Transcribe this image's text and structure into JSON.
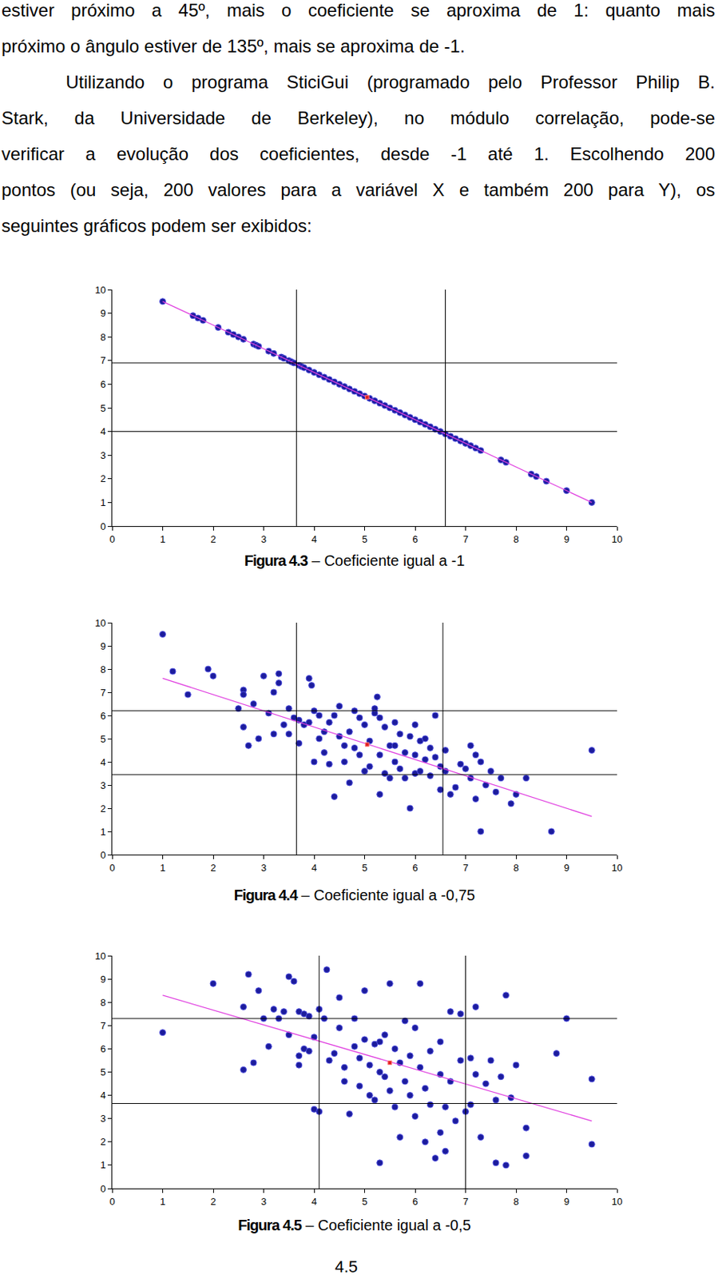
{
  "paragraphs": [
    {
      "indent": false,
      "lines": [
        "estiver próximo a 45º, mais o coeficiente se aproxima de 1: quanto mais",
        "próximo o ângulo estiver de 135º, mais se aproxima de -1."
      ]
    },
    {
      "indent": true,
      "lines": [
        "Utilizando o programa SticiGui (programado pelo Professor Philip B.",
        "Stark, da Universidade de Berkeley), no módulo correlação, pode-se",
        "verificar a evolução dos coeficientes, desde -1 até 1.  Escolhendo 200",
        "pontos (ou seja, 200 valores para a variável X e também 200 para Y), os",
        "seguintes gráficos podem ser exibidos:"
      ]
    }
  ],
  "chart_data": [
    {
      "type": "scatter",
      "caption": {
        "label": "Figura 4.3",
        "text": "– Coeficiente igual a -1"
      },
      "xlim": [
        0,
        10
      ],
      "ylim": [
        0,
        10
      ],
      "xticks": [
        0,
        1,
        2,
        3,
        4,
        5,
        6,
        7,
        8,
        9,
        10
      ],
      "yticks": [
        0,
        1,
        2,
        3,
        4,
        5,
        6,
        7,
        8,
        9,
        10
      ],
      "grid": false,
      "color": "#1c1c9c",
      "points": [
        [
          1.0,
          9.5
        ],
        [
          1.6,
          8.9
        ],
        [
          1.7,
          8.8
        ],
        [
          1.8,
          8.7
        ],
        [
          2.1,
          8.4
        ],
        [
          2.3,
          8.2
        ],
        [
          2.4,
          8.1
        ],
        [
          2.5,
          8.0
        ],
        [
          2.6,
          7.9
        ],
        [
          2.8,
          7.7
        ],
        [
          2.85,
          7.65
        ],
        [
          2.9,
          7.6
        ],
        [
          3.1,
          7.4
        ],
        [
          3.2,
          7.3
        ],
        [
          3.35,
          7.15
        ],
        [
          3.4,
          7.1
        ],
        [
          3.5,
          7.0
        ],
        [
          3.55,
          6.95
        ],
        [
          3.6,
          6.9
        ],
        [
          3.7,
          6.8
        ],
        [
          3.75,
          6.75
        ],
        [
          3.8,
          6.7
        ],
        [
          3.9,
          6.6
        ],
        [
          4.0,
          6.5
        ],
        [
          4.1,
          6.4
        ],
        [
          4.2,
          6.3
        ],
        [
          4.3,
          6.2
        ],
        [
          4.4,
          6.1
        ],
        [
          4.5,
          6.0
        ],
        [
          4.6,
          5.9
        ],
        [
          4.7,
          5.8
        ],
        [
          4.8,
          5.7
        ],
        [
          4.9,
          5.6
        ],
        [
          5.0,
          5.5
        ],
        [
          5.1,
          5.4
        ],
        [
          5.2,
          5.3
        ],
        [
          5.3,
          5.2
        ],
        [
          5.4,
          5.1
        ],
        [
          5.5,
          5.0
        ],
        [
          5.6,
          4.9
        ],
        [
          5.7,
          4.8
        ],
        [
          5.8,
          4.7
        ],
        [
          5.9,
          4.6
        ],
        [
          6.0,
          4.5
        ],
        [
          6.1,
          4.4
        ],
        [
          6.2,
          4.3
        ],
        [
          6.3,
          4.2
        ],
        [
          6.4,
          4.1
        ],
        [
          6.5,
          4.0
        ],
        [
          6.6,
          3.9
        ],
        [
          6.7,
          3.8
        ],
        [
          6.8,
          3.7
        ],
        [
          6.9,
          3.6
        ],
        [
          7.0,
          3.5
        ],
        [
          7.1,
          3.4
        ],
        [
          7.2,
          3.3
        ],
        [
          7.3,
          3.2
        ],
        [
          7.7,
          2.8
        ],
        [
          7.8,
          2.7
        ],
        [
          8.3,
          2.2
        ],
        [
          8.4,
          2.1
        ],
        [
          8.6,
          1.9
        ],
        [
          9.0,
          1.5
        ],
        [
          9.5,
          1.0
        ]
      ],
      "fit_line": {
        "x": [
          1.0,
          9.5
        ],
        "y": [
          9.5,
          1.0
        ]
      },
      "mean": [
        5.05,
        5.45
      ],
      "sd_lines": {
        "x": [
          3.65,
          6.6
        ],
        "y": [
          4.0,
          6.9
        ]
      }
    },
    {
      "type": "scatter",
      "caption": {
        "label": "Figura 4.4",
        "text": "– Coeficiente igual a -0,75"
      },
      "xlim": [
        0,
        10
      ],
      "ylim": [
        0,
        10
      ],
      "xticks": [
        0,
        1,
        2,
        3,
        4,
        5,
        6,
        7,
        8,
        9,
        10
      ],
      "yticks": [
        0,
        1,
        2,
        3,
        4,
        5,
        6,
        7,
        8,
        9,
        10
      ],
      "grid": false,
      "color": "#1c1c9c",
      "points": [
        [
          1.0,
          9.5
        ],
        [
          1.2,
          7.9
        ],
        [
          1.5,
          6.9
        ],
        [
          1.9,
          8.0
        ],
        [
          2.0,
          7.7
        ],
        [
          2.5,
          6.3
        ],
        [
          2.6,
          7.1
        ],
        [
          2.6,
          6.9
        ],
        [
          2.7,
          4.7
        ],
        [
          2.6,
          5.5
        ],
        [
          2.8,
          6.5
        ],
        [
          2.9,
          5.0
        ],
        [
          3.0,
          7.7
        ],
        [
          3.1,
          6.1
        ],
        [
          3.2,
          7.0
        ],
        [
          3.3,
          7.4
        ],
        [
          3.3,
          7.8
        ],
        [
          3.2,
          5.2
        ],
        [
          3.4,
          5.6
        ],
        [
          3.5,
          6.3
        ],
        [
          3.5,
          5.2
        ],
        [
          3.6,
          5.9
        ],
        [
          3.7,
          5.8
        ],
        [
          3.8,
          5.6
        ],
        [
          3.9,
          7.6
        ],
        [
          3.95,
          7.3
        ],
        [
          3.9,
          5.7
        ],
        [
          4.0,
          6.2
        ],
        [
          4.0,
          4.0
        ],
        [
          4.1,
          5.0
        ],
        [
          4.2,
          5.3
        ],
        [
          4.2,
          4.4
        ],
        [
          4.3,
          5.7
        ],
        [
          4.3,
          3.9
        ],
        [
          4.4,
          6.0
        ],
        [
          4.5,
          6.4
        ],
        [
          4.5,
          5.1
        ],
        [
          4.6,
          4.7
        ],
        [
          4.6,
          4.0
        ],
        [
          4.7,
          5.3
        ],
        [
          4.7,
          3.1
        ],
        [
          4.8,
          6.2
        ],
        [
          4.8,
          4.6
        ],
        [
          4.9,
          5.9
        ],
        [
          4.9,
          4.3
        ],
        [
          5.0,
          5.6
        ],
        [
          5.0,
          3.6
        ],
        [
          5.1,
          4.9
        ],
        [
          5.1,
          3.8
        ],
        [
          5.2,
          6.1
        ],
        [
          5.2,
          6.3
        ],
        [
          5.25,
          6.8
        ],
        [
          5.3,
          5.9
        ],
        [
          5.3,
          4.3
        ],
        [
          5.3,
          2.6
        ],
        [
          5.4,
          5.5
        ],
        [
          5.4,
          3.5
        ],
        [
          5.5,
          4.7
        ],
        [
          5.5,
          3.3
        ],
        [
          5.6,
          5.7
        ],
        [
          5.6,
          4.0
        ],
        [
          5.7,
          5.2
        ],
        [
          5.7,
          3.7
        ],
        [
          5.8,
          4.4
        ],
        [
          5.8,
          3.3
        ],
        [
          5.9,
          2.0
        ],
        [
          5.9,
          5.1
        ],
        [
          6.0,
          5.6
        ],
        [
          6.0,
          4.3
        ],
        [
          6.0,
          3.5
        ],
        [
          6.1,
          4.9
        ],
        [
          6.1,
          3.6
        ],
        [
          6.2,
          5.0
        ],
        [
          6.2,
          4.1
        ],
        [
          6.3,
          4.6
        ],
        [
          6.3,
          3.4
        ],
        [
          6.4,
          6.0
        ],
        [
          6.4,
          4.2
        ],
        [
          6.5,
          3.8
        ],
        [
          6.5,
          2.8
        ],
        [
          6.6,
          3.6
        ],
        [
          6.7,
          2.6
        ],
        [
          6.8,
          2.9
        ],
        [
          6.9,
          3.9
        ],
        [
          7.0,
          3.7
        ],
        [
          7.1,
          4.7
        ],
        [
          7.1,
          3.3
        ],
        [
          7.2,
          4.3
        ],
        [
          7.2,
          2.4
        ],
        [
          7.3,
          4.0
        ],
        [
          7.3,
          1.0
        ],
        [
          7.4,
          3.0
        ],
        [
          7.5,
          3.6
        ],
        [
          7.6,
          2.7
        ],
        [
          7.7,
          3.3
        ],
        [
          7.9,
          2.2
        ],
        [
          8.0,
          2.6
        ],
        [
          8.2,
          3.3
        ],
        [
          8.7,
          1.0
        ],
        [
          9.5,
          4.5
        ],
        [
          4.4,
          2.5
        ],
        [
          3.7,
          4.8
        ],
        [
          4.1,
          6.0
        ],
        [
          5.6,
          4.7
        ],
        [
          6.6,
          4.5
        ]
      ],
      "fit_line": {
        "x": [
          1.0,
          9.5
        ],
        "y": [
          7.6,
          1.65
        ]
      },
      "mean": [
        5.05,
        4.75
      ],
      "sd_lines": {
        "x": [
          3.65,
          6.55
        ],
        "y": [
          3.45,
          6.2
        ]
      }
    },
    {
      "type": "scatter",
      "caption": {
        "label": "Figura 4.5",
        "text": "– Coeficiente igual a -0,5"
      },
      "xlim": [
        0,
        10
      ],
      "ylim": [
        0,
        10
      ],
      "xticks": [
        0,
        1,
        2,
        3,
        4,
        5,
        6,
        7,
        8,
        9,
        10
      ],
      "yticks": [
        0,
        1,
        2,
        3,
        4,
        5,
        6,
        7,
        8,
        9,
        10
      ],
      "grid": false,
      "color": "#1c1c9c",
      "points": [
        [
          1.0,
          6.7
        ],
        [
          2.0,
          8.8
        ],
        [
          2.6,
          7.8
        ],
        [
          2.6,
          5.1
        ],
        [
          2.7,
          9.2
        ],
        [
          2.8,
          5.4
        ],
        [
          2.9,
          8.5
        ],
        [
          3.0,
          7.3
        ],
        [
          3.1,
          6.1
        ],
        [
          3.2,
          7.7
        ],
        [
          3.3,
          7.3
        ],
        [
          3.4,
          7.6
        ],
        [
          3.5,
          9.1
        ],
        [
          3.5,
          6.6
        ],
        [
          3.6,
          8.9
        ],
        [
          3.7,
          7.6
        ],
        [
          3.7,
          5.7
        ],
        [
          3.7,
          5.3
        ],
        [
          3.8,
          7.5
        ],
        [
          3.8,
          6.0
        ],
        [
          3.9,
          7.4
        ],
        [
          3.9,
          5.9
        ],
        [
          4.0,
          6.5
        ],
        [
          4.0,
          3.4
        ],
        [
          4.1,
          7.7
        ],
        [
          4.2,
          7.3
        ],
        [
          4.25,
          9.4
        ],
        [
          4.3,
          5.5
        ],
        [
          4.4,
          5.8
        ],
        [
          4.5,
          6.9
        ],
        [
          4.5,
          8.2
        ],
        [
          4.6,
          5.2
        ],
        [
          4.6,
          4.6
        ],
        [
          4.7,
          3.2
        ],
        [
          4.8,
          6.1
        ],
        [
          4.8,
          7.3
        ],
        [
          4.9,
          5.6
        ],
        [
          4.9,
          4.4
        ],
        [
          5.0,
          6.4
        ],
        [
          5.0,
          8.5
        ],
        [
          5.1,
          5.3
        ],
        [
          5.1,
          4.0
        ],
        [
          5.2,
          6.2
        ],
        [
          5.2,
          3.8
        ],
        [
          5.3,
          5.0
        ],
        [
          5.3,
          1.1
        ],
        [
          5.4,
          4.8
        ],
        [
          5.4,
          6.6
        ],
        [
          5.5,
          8.8
        ],
        [
          5.5,
          4.2
        ],
        [
          5.6,
          6.0
        ],
        [
          5.6,
          3.5
        ],
        [
          5.7,
          5.4
        ],
        [
          5.7,
          2.2
        ],
        [
          5.8,
          7.2
        ],
        [
          5.8,
          4.6
        ],
        [
          5.9,
          5.7
        ],
        [
          5.9,
          4.0
        ],
        [
          6.0,
          6.9
        ],
        [
          6.0,
          3.1
        ],
        [
          6.1,
          8.8
        ],
        [
          6.1,
          5.2
        ],
        [
          6.2,
          4.3
        ],
        [
          6.2,
          2.0
        ],
        [
          6.3,
          5.9
        ],
        [
          6.3,
          3.6
        ],
        [
          6.4,
          1.3
        ],
        [
          6.5,
          6.3
        ],
        [
          6.5,
          4.9
        ],
        [
          6.5,
          2.4
        ],
        [
          6.6,
          3.5
        ],
        [
          6.6,
          1.6
        ],
        [
          6.7,
          7.6
        ],
        [
          6.7,
          4.6
        ],
        [
          6.8,
          2.9
        ],
        [
          6.9,
          7.5
        ],
        [
          6.9,
          5.5
        ],
        [
          7.0,
          3.3
        ],
        [
          7.1,
          5.6
        ],
        [
          7.1,
          3.6
        ],
        [
          7.2,
          7.8
        ],
        [
          7.2,
          4.9
        ],
        [
          7.3,
          2.2
        ],
        [
          7.4,
          4.5
        ],
        [
          7.5,
          5.5
        ],
        [
          7.6,
          1.1
        ],
        [
          7.6,
          3.8
        ],
        [
          7.7,
          4.8
        ],
        [
          7.8,
          1.0
        ],
        [
          7.8,
          8.3
        ],
        [
          7.9,
          3.9
        ],
        [
          8.0,
          5.3
        ],
        [
          8.2,
          2.6
        ],
        [
          8.2,
          1.4
        ],
        [
          8.8,
          5.8
        ],
        [
          9.0,
          7.3
        ],
        [
          9.5,
          4.7
        ],
        [
          9.5,
          1.9
        ],
        [
          4.1,
          3.3
        ],
        [
          5.3,
          6.3
        ]
      ],
      "fit_line": {
        "x": [
          1.0,
          9.5
        ],
        "y": [
          8.3,
          2.9
        ]
      },
      "mean": [
        5.5,
        5.4
      ],
      "sd_lines": {
        "x": [
          4.1,
          7.0
        ],
        "y": [
          3.65,
          7.3
        ]
      }
    }
  ],
  "page_number": "4.5"
}
